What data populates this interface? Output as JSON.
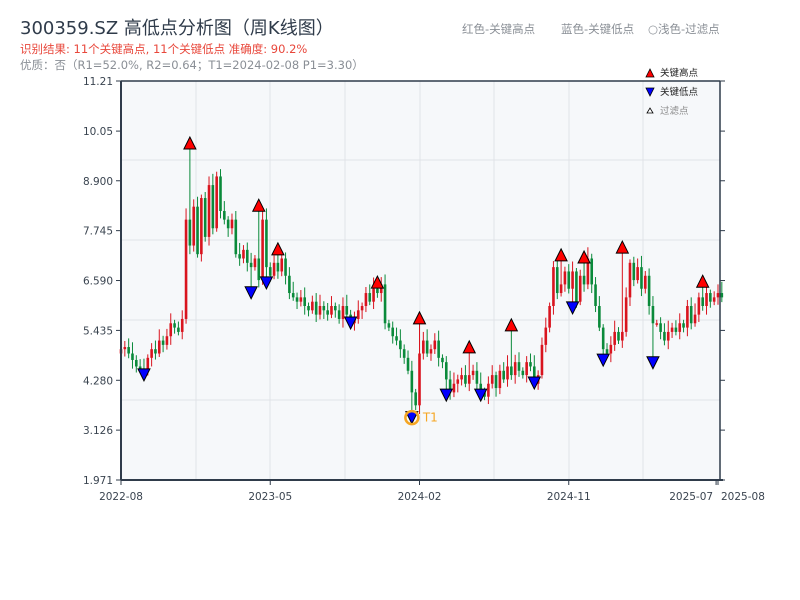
{
  "header": {
    "title": "300359.SZ 高低点分析图（周K线图）",
    "result_line": "识别结果: 11个关键高点, 11个关键低点  准确度: 90.2%",
    "quality_line": "优质：否（R1=52.0%, R2=0.64；T1=2024-02-08 P1=3.30）",
    "legend_red": "红色-关键高点",
    "legend_blue": "蓝色-关键低点",
    "legend_light": "○浅色-过滤点"
  },
  "colors": {
    "up": "#d9141e",
    "down": "#0a8a3a",
    "high_marker": "#ff0000",
    "low_marker": "#0000ff",
    "t1": "#f5a623",
    "axis": "#2f3b4a",
    "grid": "#e0e3e8",
    "plot_bg": "#f6f8fa"
  },
  "chart_data": {
    "type": "candlestick",
    "title": "300359.SZ 高低点分析图（周K线图）",
    "ylim": [
      1.971,
      11.21
    ],
    "y_ticks": [
      "11.21",
      "10.05",
      "8.900",
      "7.745",
      "6.590",
      "5.435",
      "4.280",
      "3.126",
      "1.971"
    ],
    "y_tick_values": [
      11.21,
      10.05,
      8.9,
      7.745,
      6.59,
      5.435,
      4.28,
      3.126,
      1.971
    ],
    "x_ticks": [
      {
        "label": "2022-08",
        "week": 0
      },
      {
        "label": "2023-05",
        "week": 39
      },
      {
        "label": "2024-02",
        "week": 78
      },
      {
        "label": "2024-11",
        "week": 117
      },
      {
        "label": "2025-07",
        "week": 155.5
      },
      {
        "label": "2025-08",
        "week": 156
      }
    ],
    "weeks": 157,
    "weekly_close": [
      5.0,
      5.05,
      4.9,
      4.75,
      4.6,
      4.55,
      4.5,
      4.8,
      5.0,
      4.9,
      5.2,
      5.1,
      5.3,
      5.6,
      5.5,
      5.4,
      5.7,
      8.0,
      7.4,
      8.3,
      7.2,
      8.5,
      7.6,
      8.8,
      7.8,
      9.0,
      8.2,
      8.0,
      7.8,
      8.0,
      7.2,
      7.1,
      7.3,
      7.0,
      6.9,
      7.1,
      6.6,
      8.0,
      6.9,
      6.7,
      7.0,
      6.8,
      7.1,
      6.7,
      6.3,
      6.2,
      6.1,
      6.2,
      6.0,
      5.9,
      6.1,
      5.8,
      6.0,
      5.9,
      5.8,
      6.0,
      5.9,
      5.7,
      6.0,
      5.8,
      5.6,
      5.7,
      5.9,
      6.0,
      6.3,
      6.1,
      6.4,
      6.3,
      6.5,
      5.6,
      5.5,
      5.3,
      5.2,
      5.0,
      4.8,
      4.5,
      4.0,
      3.7,
      4.9,
      5.2,
      4.9,
      5.0,
      5.2,
      4.8,
      4.7,
      4.3,
      4.0,
      4.2,
      4.3,
      4.4,
      4.2,
      4.4,
      4.5,
      4.2,
      4.0,
      3.9,
      4.2,
      4.4,
      4.1,
      4.5,
      4.3,
      4.6,
      4.4,
      4.7,
      4.5,
      4.4,
      4.7,
      4.6,
      4.2,
      4.4,
      5.1,
      5.5,
      6.0,
      6.9,
      6.3,
      6.5,
      6.8,
      6.4,
      6.8,
      6.1,
      6.7,
      6.5,
      7.1,
      6.5,
      6.0,
      5.5,
      5.0,
      4.9,
      5.1,
      5.4,
      5.2,
      5.4,
      6.2,
      7.0,
      6.6,
      6.9,
      6.4,
      6.7,
      6.0,
      5.6,
      5.6,
      5.4,
      5.2,
      5.4,
      5.5,
      5.4,
      5.6,
      5.5,
      6.0,
      5.6,
      5.8,
      6.2,
      6.0,
      6.3,
      6.1,
      6.2,
      6.3,
      6.2
    ],
    "key_highs": [
      {
        "week": 18,
        "price": 9.89
      },
      {
        "week": 36,
        "price": 8.45
      },
      {
        "week": 41,
        "price": 7.44
      },
      {
        "week": 67,
        "price": 6.67
      },
      {
        "week": 78,
        "price": 5.84
      },
      {
        "week": 91,
        "price": 5.17
      },
      {
        "week": 102,
        "price": 5.68
      },
      {
        "week": 115,
        "price": 7.3
      },
      {
        "week": 121,
        "price": 7.25
      },
      {
        "week": 131,
        "price": 7.48
      },
      {
        "week": 152,
        "price": 6.69
      }
    ],
    "key_lows": [
      {
        "week": 6,
        "price": 4.29
      },
      {
        "week": 34,
        "price": 6.19
      },
      {
        "week": 38,
        "price": 6.42
      },
      {
        "week": 60,
        "price": 5.49
      },
      {
        "week": 76,
        "price": 3.3
      },
      {
        "week": 85,
        "price": 3.82
      },
      {
        "week": 94,
        "price": 3.82
      },
      {
        "week": 108,
        "price": 4.1
      },
      {
        "week": 118,
        "price": 5.84
      },
      {
        "week": 126,
        "price": 4.63
      },
      {
        "week": 139,
        "price": 4.57
      }
    ],
    "t1": {
      "label": "T1",
      "week": 76,
      "price": 3.3
    },
    "legend": {
      "placement": "top-right",
      "items": [
        "关键高点",
        "关键低点",
        "过滤点"
      ]
    }
  }
}
